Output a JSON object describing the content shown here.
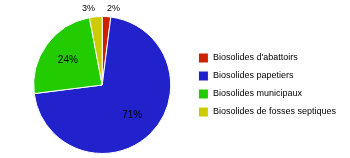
{
  "chart_data": {
    "type": "pie",
    "categories": [
      "Biosolides d'abattoirs",
      "Biosolides papetiers",
      "Biosolides municipaux",
      "Biosolides de fosses septiques"
    ],
    "values": [
      2,
      71,
      24,
      3
    ],
    "value_labels": [
      "2%",
      "71%",
      "24%",
      "3%"
    ],
    "colors": [
      "#cc2200",
      "#2222cc",
      "#22cc00",
      "#cccc00"
    ],
    "data_labels": true,
    "legend": "right"
  }
}
